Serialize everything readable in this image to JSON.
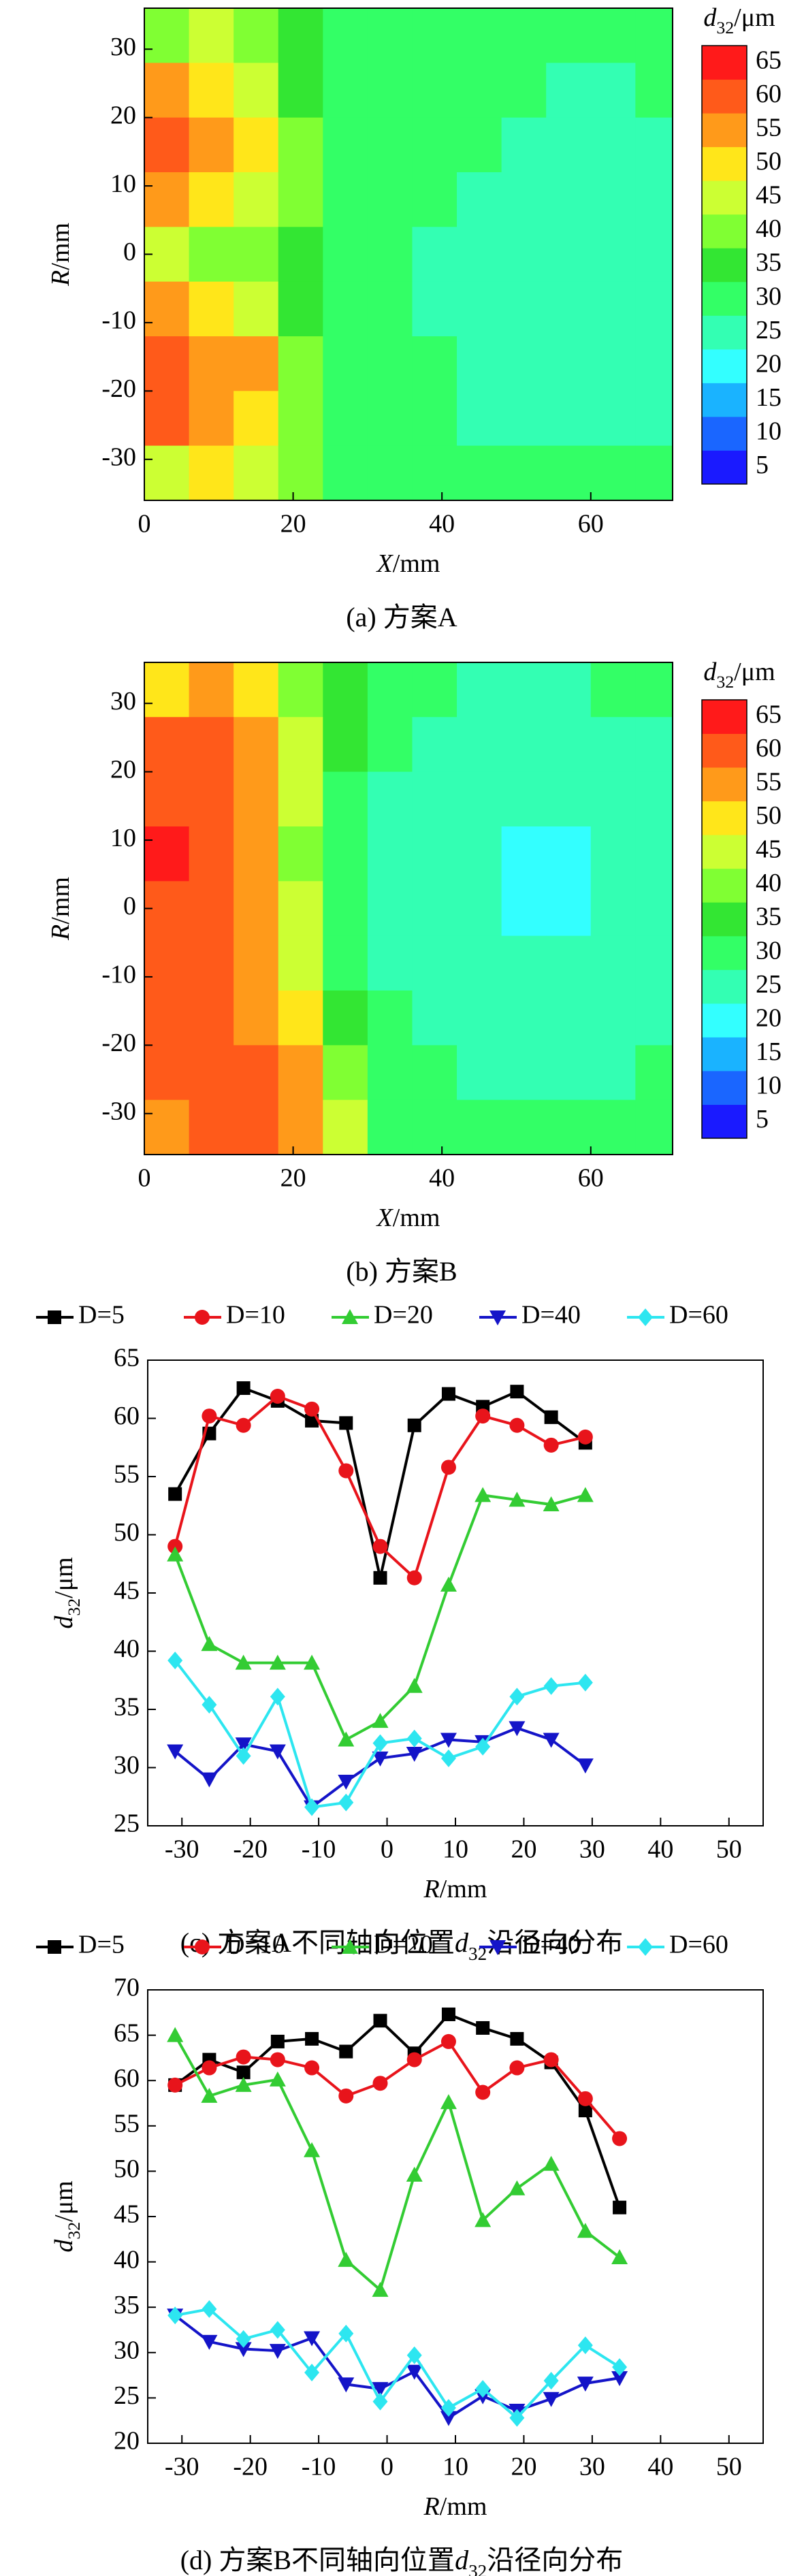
{
  "chart_data": [
    {
      "type": "heatmap",
      "caption": {
        "prefix": "(a) 方案A"
      },
      "x_label": {
        "symbol": "X",
        "unit": "/mm"
      },
      "y_label": {
        "symbol": "R",
        "unit": "/mm"
      },
      "xlim": [
        0,
        71
      ],
      "ylim": [
        -36,
        36
      ],
      "xticks": [
        0,
        20,
        40,
        60
      ],
      "yticks": [
        -30,
        -20,
        -10,
        0,
        10,
        20,
        30
      ],
      "x": [
        3,
        9,
        15,
        21,
        27,
        33,
        39,
        45,
        51,
        57,
        63,
        69
      ],
      "y": [
        32,
        24,
        16,
        8,
        0,
        -8,
        -16,
        -24,
        -32
      ],
      "values": [
        [
          40,
          45,
          40,
          38,
          33,
          32,
          32,
          31,
          30,
          30,
          31,
          30
        ],
        [
          58,
          52,
          45,
          38,
          33,
          32,
          31,
          30,
          30,
          29,
          29,
          30
        ],
        [
          60,
          57,
          52,
          42,
          34,
          32,
          31,
          30,
          29,
          29,
          29,
          29
        ],
        [
          58,
          52,
          47,
          40,
          33,
          32,
          30,
          29,
          28,
          28,
          28,
          29
        ],
        [
          45,
          42,
          40,
          36,
          32,
          31,
          29,
          28,
          28,
          28,
          28,
          29
        ],
        [
          55,
          52,
          45,
          38,
          33,
          31,
          29,
          28,
          28,
          27,
          28,
          29
        ],
        [
          60,
          58,
          55,
          42,
          34,
          32,
          30,
          29,
          28,
          28,
          28,
          29
        ],
        [
          60,
          58,
          52,
          40,
          34,
          32,
          30,
          29,
          29,
          29,
          29,
          29
        ],
        [
          48,
          50,
          45,
          40,
          34,
          32,
          31,
          30,
          30,
          30,
          30,
          31
        ]
      ],
      "colorbar": {
        "label": {
          "symbol": "d",
          "subscript": "32",
          "unit": "/μm"
        },
        "levels": [
          5,
          10,
          15,
          20,
          25,
          30,
          35,
          40,
          45,
          50,
          55,
          60,
          65
        ],
        "colors": [
          "#1a1aff",
          "#1a66ff",
          "#1ab3ff",
          "#33ffff",
          "#33ffb3",
          "#33ff66",
          "#33e633",
          "#80ff33",
          "#ccff33",
          "#ffe61a",
          "#ff9a1a",
          "#ff5a1a",
          "#ff1a1a"
        ]
      }
    },
    {
      "type": "heatmap",
      "caption": {
        "prefix": "(b) 方案B"
      },
      "x_label": {
        "symbol": "X",
        "unit": "/mm"
      },
      "y_label": {
        "symbol": "R",
        "unit": "/mm"
      },
      "xlim": [
        0,
        71
      ],
      "ylim": [
        -36,
        36
      ],
      "xticks": [
        0,
        20,
        40,
        60
      ],
      "yticks": [
        -30,
        -20,
        -10,
        0,
        10,
        20,
        30
      ],
      "x": [
        3,
        9,
        15,
        21,
        27,
        33,
        39,
        45,
        51,
        57,
        63,
        69
      ],
      "y": [
        32,
        24,
        16,
        8,
        0,
        -8,
        -16,
        -24,
        -32
      ],
      "values": [
        [
          52,
          55,
          50,
          40,
          35,
          32,
          30,
          29,
          29,
          29,
          30,
          31
        ],
        [
          62,
          60,
          55,
          45,
          35,
          30,
          28,
          27,
          26,
          26,
          27,
          29
        ],
        [
          63,
          61,
          55,
          45,
          34,
          29,
          27,
          25,
          25,
          25,
          26,
          28
        ],
        [
          65,
          62,
          56,
          42,
          33,
          29,
          26,
          25,
          24,
          24,
          25,
          28
        ],
        [
          63,
          61,
          56,
          45,
          33,
          29,
          26,
          25,
          24,
          24,
          25,
          28
        ],
        [
          62,
          60,
          57,
          47,
          34,
          29,
          27,
          25,
          25,
          25,
          26,
          28
        ],
        [
          61,
          60,
          58,
          50,
          36,
          30,
          28,
          27,
          26,
          26,
          27,
          29
        ],
        [
          61,
          61,
          60,
          55,
          40,
          31,
          30,
          29,
          28,
          28,
          29,
          30
        ],
        [
          55,
          60,
          62,
          58,
          45,
          33,
          31,
          30,
          30,
          30,
          30,
          31
        ]
      ],
      "colorbar": {
        "label": {
          "symbol": "d",
          "subscript": "32",
          "unit": "/μm"
        },
        "levels": [
          5,
          10,
          15,
          20,
          25,
          30,
          35,
          40,
          45,
          50,
          55,
          60,
          65
        ],
        "colors": [
          "#1a1aff",
          "#1a66ff",
          "#1ab3ff",
          "#33ffff",
          "#33ffb3",
          "#33ff66",
          "#33e633",
          "#80ff33",
          "#ccff33",
          "#ffe61a",
          "#ff9a1a",
          "#ff5a1a",
          "#ff1a1a"
        ]
      }
    },
    {
      "type": "line",
      "caption": {
        "prefix": "(c) 方案A不同轴向位置",
        "symbol": "d",
        "subscript": "32",
        "suffix": "沿径向分布"
      },
      "x_label": {
        "symbol": "R",
        "unit": "/mm"
      },
      "y_label": {
        "symbol": "d",
        "subscript": "32",
        "unit": "/μm"
      },
      "xlim": [
        -35,
        55
      ],
      "ylim": [
        25,
        65
      ],
      "xticks": [
        -30,
        -20,
        -10,
        0,
        10,
        20,
        30,
        40,
        50
      ],
      "yticks": [
        25,
        30,
        35,
        40,
        45,
        50,
        55,
        60,
        65
      ],
      "x": [
        -31,
        -26,
        -21,
        -16,
        -11,
        -6,
        -1,
        4,
        9,
        14,
        19,
        24,
        29
      ],
      "series": [
        {
          "name": "D=5",
          "color": "#000000",
          "marker": "square",
          "values": [
            53.5,
            58.7,
            62.6,
            61.5,
            59.8,
            59.6,
            46.3,
            59.4,
            62.1,
            61.0,
            62.3,
            60.1,
            57.9
          ]
        },
        {
          "name": "D=10",
          "color": "#e8141b",
          "marker": "circle",
          "values": [
            49.0,
            60.2,
            59.4,
            61.9,
            60.8,
            55.5,
            49.0,
            46.3,
            55.8,
            60.2,
            59.4,
            57.7,
            58.4
          ]
        },
        {
          "name": "D=20",
          "color": "#33cc33",
          "marker": "triangle-up",
          "values": [
            48.3,
            40.6,
            39.0,
            39.0,
            39.0,
            32.4,
            34.0,
            37.0,
            45.7,
            53.4,
            53.0,
            52.6,
            53.4
          ]
        },
        {
          "name": "D=40",
          "color": "#1414c8",
          "marker": "triangle-down",
          "values": [
            31.4,
            29.0,
            32.0,
            31.4,
            26.6,
            28.8,
            30.8,
            31.2,
            32.4,
            32.2,
            33.4,
            32.4,
            30.2
          ]
        },
        {
          "name": "D=60",
          "color": "#2de6f0",
          "marker": "diamond",
          "values": [
            39.2,
            35.4,
            31.0,
            36.1,
            26.6,
            27.0,
            32.1,
            32.5,
            30.8,
            31.8,
            36.1,
            37.0,
            37.3
          ]
        }
      ]
    },
    {
      "type": "line",
      "caption": {
        "prefix": "(d) 方案B不同轴向位置",
        "symbol": "d",
        "subscript": "32",
        "suffix": "沿径向分布"
      },
      "x_label": {
        "symbol": "R",
        "unit": "/mm"
      },
      "y_label": {
        "symbol": "d",
        "subscript": "32",
        "unit": "/μm"
      },
      "xlim": [
        -35,
        55
      ],
      "ylim": [
        20,
        70
      ],
      "xticks": [
        -30,
        -20,
        -10,
        0,
        10,
        20,
        30,
        40,
        50
      ],
      "yticks": [
        20,
        25,
        30,
        35,
        40,
        45,
        50,
        55,
        60,
        65,
        70
      ],
      "x": [
        -31,
        -26,
        -21,
        -16,
        -11,
        -6,
        -1,
        4,
        9,
        14,
        19,
        24,
        29,
        34
      ],
      "series": [
        {
          "name": "D=5",
          "color": "#000000",
          "marker": "square",
          "values": [
            59.5,
            62.3,
            60.9,
            64.3,
            64.6,
            63.2,
            66.6,
            63.0,
            67.3,
            65.8,
            64.6,
            62.0,
            56.7,
            46.0
          ]
        },
        {
          "name": "D=10",
          "color": "#e8141b",
          "marker": "circle",
          "values": [
            59.5,
            61.4,
            62.6,
            62.3,
            61.4,
            58.3,
            59.7,
            62.3,
            64.3,
            58.7,
            61.4,
            62.3,
            58.0,
            53.6
          ]
        },
        {
          "name": "D=20",
          "color": "#33cc33",
          "marker": "triangle-up",
          "values": [
            65.0,
            58.3,
            59.5,
            60.1,
            52.3,
            40.2,
            36.9,
            49.6,
            57.6,
            44.6,
            48.1,
            50.8,
            43.4,
            40.5
          ]
        },
        {
          "name": "D=40",
          "color": "#1414c8",
          "marker": "triangle-down",
          "values": [
            34.1,
            31.2,
            30.4,
            30.2,
            31.6,
            26.5,
            26.0,
            27.9,
            22.8,
            25.2,
            23.6,
            24.9,
            26.6,
            27.2
          ]
        },
        {
          "name": "D=60",
          "color": "#2de6f0",
          "marker": "diamond",
          "values": [
            34.1,
            34.8,
            31.5,
            32.5,
            27.8,
            32.1,
            24.6,
            29.7,
            23.9,
            26.0,
            22.8,
            26.9,
            30.8,
            28.4
          ]
        }
      ]
    }
  ]
}
